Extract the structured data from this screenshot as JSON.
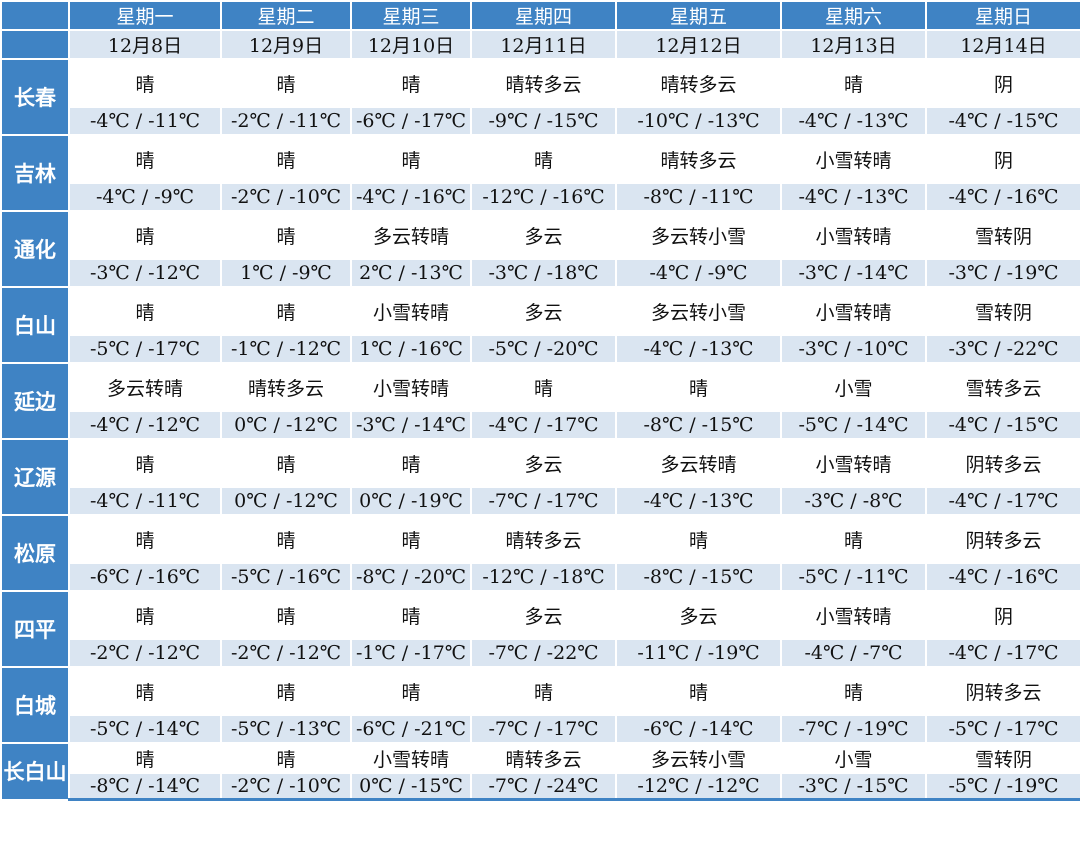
{
  "colors": {
    "header": "#3f83c4",
    "band": "#dae5f1"
  },
  "days": [
    "星期一",
    "星期二",
    "星期三",
    "星期四",
    "星期五",
    "星期六",
    "星期日"
  ],
  "dates": [
    "12月8日",
    "12月9日",
    "12月10日",
    "12月11日",
    "12月12日",
    "12月13日",
    "12月14日"
  ],
  "cities": [
    {
      "name": "长春",
      "weather": [
        "晴",
        "晴",
        "晴",
        "晴转多云",
        "晴转多云",
        "晴",
        "阴"
      ],
      "temps": [
        "-4℃ / -11℃",
        "-2℃ / -11℃",
        "-6℃ / -17℃",
        "-9℃ / -15℃",
        "-10℃ / -13℃",
        "-4℃ / -13℃",
        "-4℃ / -15℃"
      ]
    },
    {
      "name": "吉林",
      "weather": [
        "晴",
        "晴",
        "晴",
        "晴",
        "晴转多云",
        "小雪转晴",
        "阴"
      ],
      "temps": [
        "-4℃ / -9℃",
        "-2℃ / -10℃",
        "-4℃ / -16℃",
        "-12℃ / -16℃",
        "-8℃ / -11℃",
        "-4℃ / -13℃",
        "-4℃ / -16℃"
      ]
    },
    {
      "name": "通化",
      "weather": [
        "晴",
        "晴",
        "多云转晴",
        "多云",
        "多云转小雪",
        "小雪转晴",
        "雪转阴"
      ],
      "temps": [
        "-3℃ / -12℃",
        "1℃ / -9℃",
        "2℃ / -13℃",
        "-3℃ / -18℃",
        "-4℃ / -9℃",
        "-3℃ / -14℃",
        "-3℃ / -19℃"
      ]
    },
    {
      "name": "白山",
      "weather": [
        "晴",
        "晴",
        "小雪转晴",
        "多云",
        "多云转小雪",
        "小雪转晴",
        "雪转阴"
      ],
      "temps": [
        "-5℃ / -17℃",
        "-1℃ / -12℃",
        "1℃ / -16℃",
        "-5℃ / -20℃",
        "-4℃ / -13℃",
        "-3℃ / -10℃",
        "-3℃ / -22℃"
      ]
    },
    {
      "name": "延边",
      "weather": [
        "多云转晴",
        "晴转多云",
        "小雪转晴",
        "晴",
        "晴",
        "小雪",
        "雪转多云"
      ],
      "temps": [
        "-4℃ / -12℃",
        "0℃ / -12℃",
        "-3℃ / -14℃",
        "-4℃ / -17℃",
        "-8℃ / -15℃",
        "-5℃ / -14℃",
        "-4℃ / -15℃"
      ]
    },
    {
      "name": "辽源",
      "weather": [
        "晴",
        "晴",
        "晴",
        "多云",
        "多云转晴",
        "小雪转晴",
        "阴转多云"
      ],
      "temps": [
        "-4℃ / -11℃",
        "0℃ / -12℃",
        "0℃ / -19℃",
        "-7℃ / -17℃",
        "-4℃ / -13℃",
        "-3℃ / -8℃",
        "-4℃ / -17℃"
      ]
    },
    {
      "name": "松原",
      "weather": [
        "晴",
        "晴",
        "晴",
        "晴转多云",
        "晴",
        "晴",
        "阴转多云"
      ],
      "temps": [
        "-6℃ / -16℃",
        "-5℃ / -16℃",
        "-8℃ / -20℃",
        "-12℃ / -18℃",
        "-8℃ / -15℃",
        "-5℃ / -11℃",
        "-4℃ / -16℃"
      ]
    },
    {
      "name": "四平",
      "weather": [
        "晴",
        "晴",
        "晴",
        "多云",
        "多云",
        "小雪转晴",
        "阴"
      ],
      "temps": [
        "-2℃ / -12℃",
        "-2℃ / -12℃",
        "-1℃ / -17℃",
        "-7℃ / -22℃",
        "-11℃ / -19℃",
        "-4℃ / -7℃",
        "-4℃ / -17℃"
      ]
    },
    {
      "name": "白城",
      "weather": [
        "晴",
        "晴",
        "晴",
        "晴",
        "晴",
        "晴",
        "阴转多云"
      ],
      "temps": [
        "-5℃ / -14℃",
        "-5℃ / -13℃",
        "-6℃ / -21℃",
        "-7℃ / -17℃",
        "-6℃ / -14℃",
        "-7℃ / -19℃",
        "-5℃ / -17℃"
      ]
    },
    {
      "name": "长白山",
      "weather": [
        "晴",
        "晴",
        "小雪转晴",
        "晴转多云",
        "多云转小雪",
        "小雪",
        "雪转阴"
      ],
      "temps": [
        "-8℃ / -14℃",
        "-2℃ / -10℃",
        "0℃ / -15℃",
        "-7℃ / -24℃",
        "-12℃ / -12℃",
        "-3℃ / -15℃",
        "-5℃ / -19℃"
      ]
    }
  ]
}
